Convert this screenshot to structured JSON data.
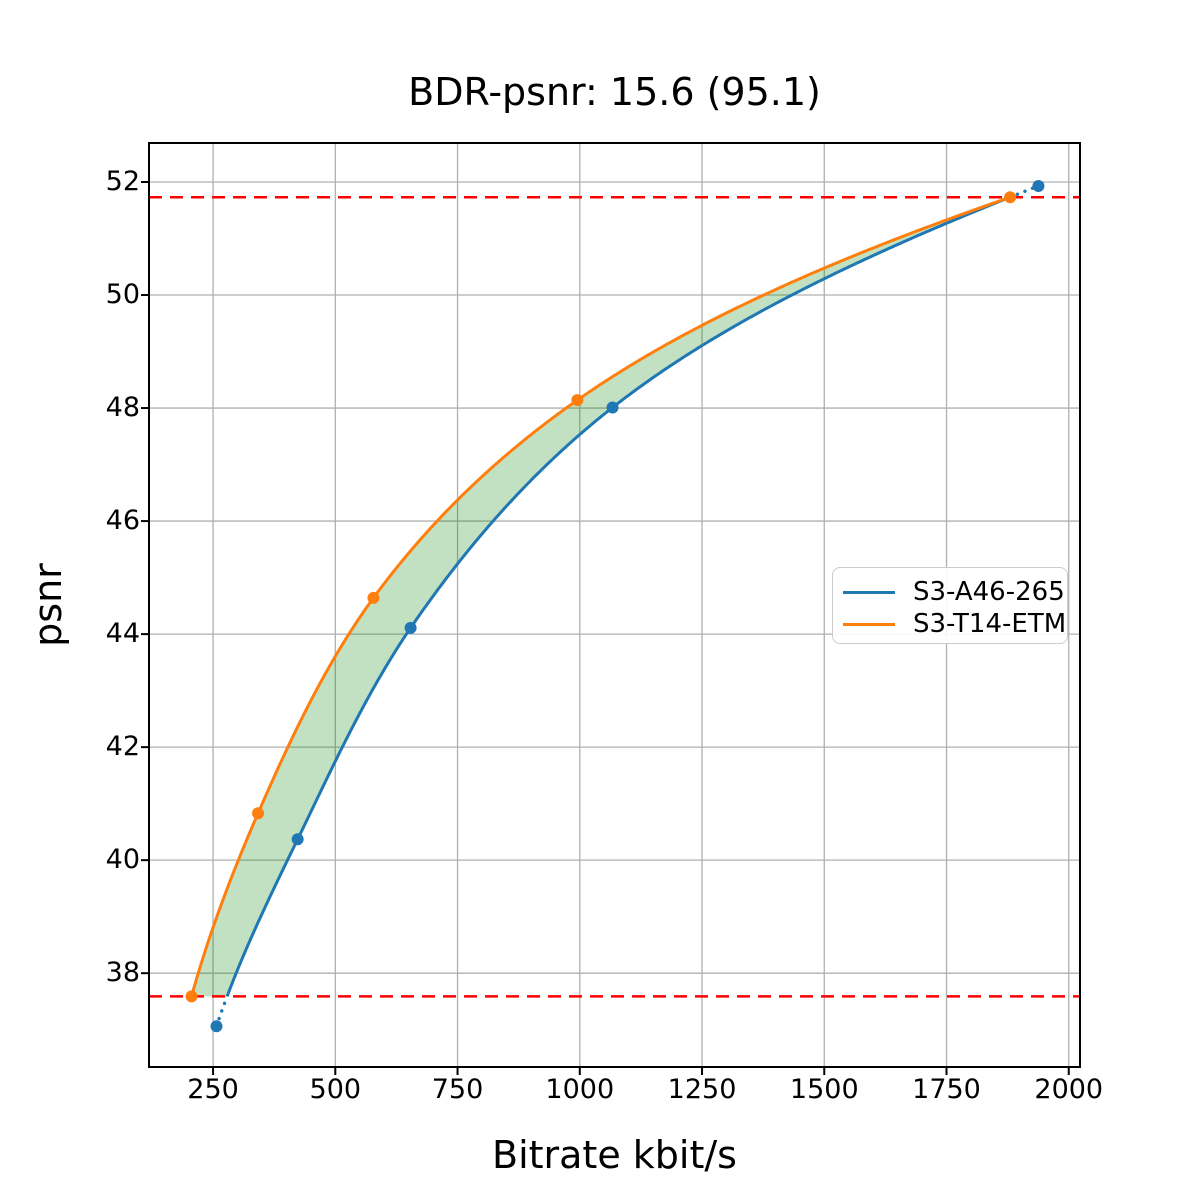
{
  "title": "BDR-psnr: 15.6 (95.1)",
  "chart_data": {
    "type": "line",
    "title": "BDR-psnr: 15.6 (95.1)",
    "xlabel": "Bitrate kbit/s",
    "ylabel": "psnr",
    "xlim": [
      119,
      2023
    ],
    "ylim": [
      36.34,
      52.69
    ],
    "x_ticks": [
      250,
      500,
      750,
      1000,
      1250,
      1500,
      1750,
      2000
    ],
    "y_ticks": [
      38,
      40,
      42,
      44,
      46,
      48,
      50,
      52
    ],
    "grid": true,
    "legend_position": "center-right",
    "series": [
      {
        "name": "S3-A46-265",
        "color": "#1f77b4",
        "marker": "circle",
        "x": [
          257,
          423,
          654,
          1067,
          1938
        ],
        "y": [
          37.06,
          40.37,
          44.11,
          48.01,
          51.93
        ]
      },
      {
        "name": "S3-T14-ETM",
        "color": "#ff7f0e",
        "marker": "circle",
        "x": [
          206,
          342,
          578,
          995,
          1880
        ],
        "y": [
          37.59,
          40.83,
          44.64,
          48.14,
          51.73
        ]
      }
    ],
    "overlap_bounds_psnr": [
      37.59,
      51.73
    ],
    "overlap_line_color": "#ff0000",
    "overlap_line_style": "dashed",
    "fill_between_color": "green",
    "fill_between_opacity": 0.24,
    "grid_color": "#b0b0b0",
    "spine_color": "#000000"
  }
}
